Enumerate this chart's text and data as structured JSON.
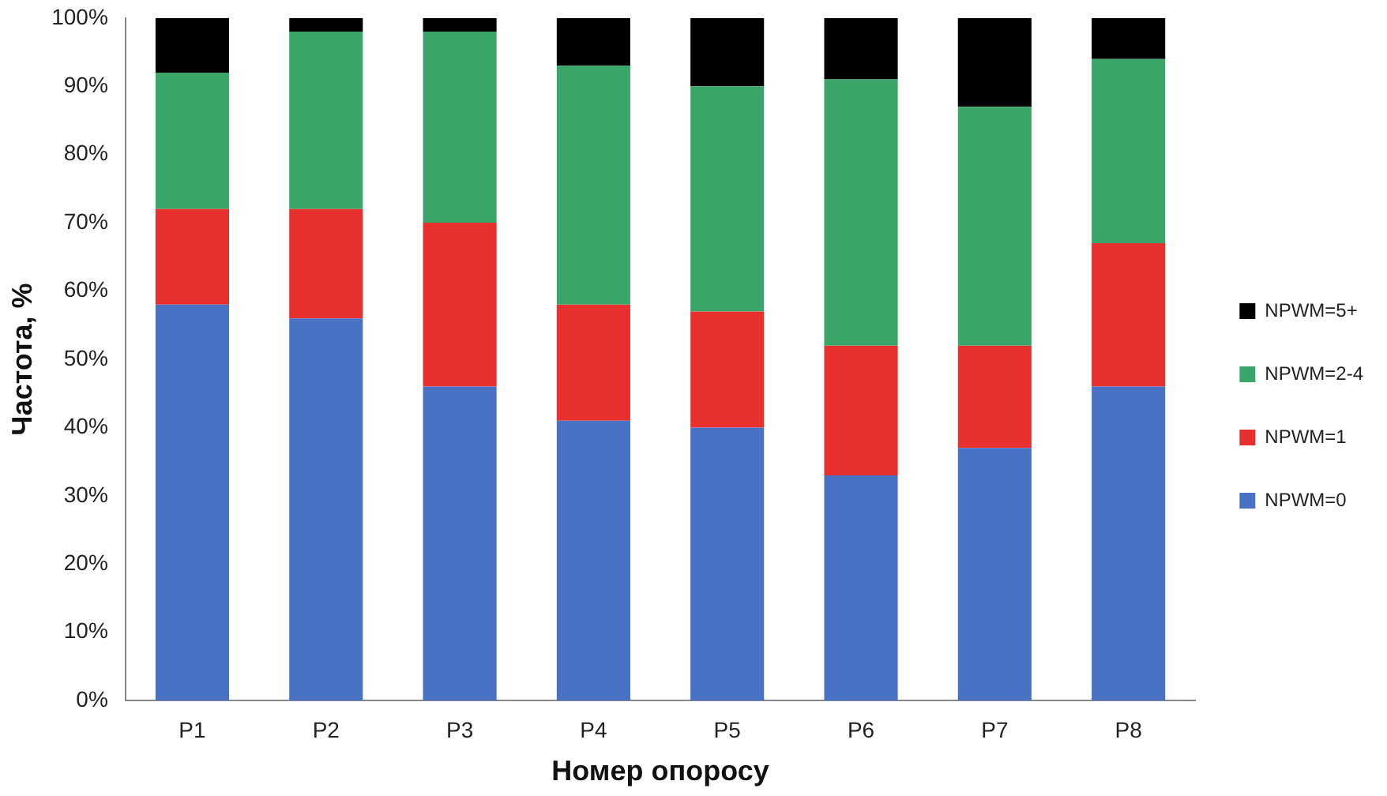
{
  "chart_data": {
    "type": "bar",
    "stacked": true,
    "xlabel": "Номер опоросу",
    "ylabel": "Частота, %",
    "categories": [
      "P1",
      "P2",
      "P3",
      "P4",
      "P5",
      "P6",
      "P7",
      "P8"
    ],
    "series": [
      {
        "name": "NPWM=0",
        "color": "#4a72c4",
        "values": [
          58,
          56,
          46,
          41,
          40,
          33,
          37,
          46
        ]
      },
      {
        "name": "NPWM=1",
        "color": "#e8302f",
        "values": [
          14,
          16,
          24,
          17,
          17,
          19,
          15,
          21
        ]
      },
      {
        "name": "NPWM=2-4",
        "color": "#3aa66a",
        "values": [
          20,
          26,
          28,
          35,
          33,
          39,
          35,
          27
        ]
      },
      {
        "name": "NPWM=5+",
        "color": "#000000",
        "values": [
          8,
          2,
          2,
          7,
          10,
          9,
          13,
          6
        ]
      }
    ],
    "ylim": [
      0,
      100
    ],
    "yticks": [
      {
        "value": 0,
        "label": "0%"
      },
      {
        "value": 10,
        "label": "10%"
      },
      {
        "value": 20,
        "label": "20%"
      },
      {
        "value": 30,
        "label": "30%"
      },
      {
        "value": 40,
        "label": "40%"
      },
      {
        "value": 50,
        "label": "50%"
      },
      {
        "value": 60,
        "label": "60%"
      },
      {
        "value": 70,
        "label": "70%"
      },
      {
        "value": 80,
        "label": "80%"
      },
      {
        "value": 90,
        "label": "90%"
      },
      {
        "value": 100,
        "label": "100%"
      }
    ],
    "grid": false,
    "legend": "right"
  }
}
